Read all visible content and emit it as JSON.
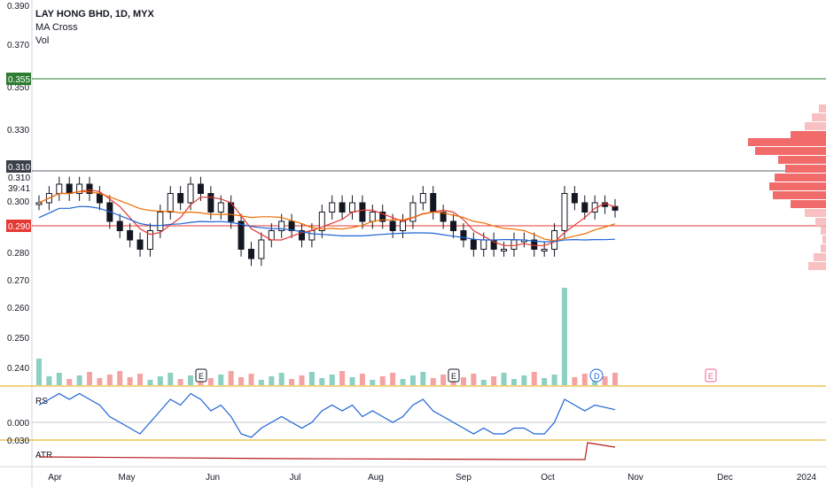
{
  "chart_data": {
    "type": "candlestick",
    "symbol_title": "LAY HONG BHD, 1D, MYX",
    "indicators": [
      "MA Cross",
      "Vol"
    ],
    "price_axis_ticks": [
      "0.390",
      "0.370",
      "0.350",
      "0.330",
      "0.310",
      "0.300",
      "0.290",
      "0.280",
      "0.270",
      "0.260",
      "0.250",
      "0.240"
    ],
    "x_labels": [
      "Apr",
      "May",
      "Jun",
      "Jul",
      "Aug",
      "Sep",
      "Oct",
      "Nov",
      "Dec",
      "2024"
    ],
    "price_labels": {
      "resistance": "0.355",
      "last_price": "0.310",
      "last_price_2": "0.310",
      "countdown": "39:41",
      "support": "0.290"
    },
    "levels": {
      "resistance": 0.355,
      "last_price": 0.31,
      "support": 0.29
    },
    "colors": {
      "resistance": "#2e7d32",
      "support": "#e53935",
      "last_price": "#5d606b",
      "ma_fast": "#e53935",
      "ma_mid": "#ef6c00",
      "ma_slow": "#1e63d6",
      "volume_up": "#8ccfc3",
      "volume_down": "#f4a3a3",
      "profile": "#f26b6b",
      "rs_line": "#1e63d6",
      "atr_line": "#b71c1c"
    },
    "price_series": {
      "start_date": "2023-03-27",
      "end_date": "2023-10-24",
      "closes_approx": [
        0.3,
        0.305,
        0.31,
        0.305,
        0.31,
        0.305,
        0.3,
        0.29,
        0.285,
        0.28,
        0.275,
        0.285,
        0.295,
        0.305,
        0.3,
        0.31,
        0.305,
        0.295,
        0.3,
        0.29,
        0.275,
        0.27,
        0.28,
        0.285,
        0.29,
        0.285,
        0.28,
        0.285,
        0.295,
        0.3,
        0.295,
        0.3,
        0.29,
        0.295,
        0.29,
        0.285,
        0.29,
        0.3,
        0.305,
        0.295,
        0.29,
        0.285,
        0.28,
        0.275,
        0.28,
        0.275,
        0.275,
        0.28,
        0.28,
        0.275,
        0.275,
        0.285,
        0.305,
        0.3,
        0.295,
        0.3,
        0.298,
        0.296
      ]
    },
    "volume_markers": [
      "E",
      "E",
      "D",
      "E"
    ],
    "panels": [
      {
        "name": "RS",
        "ticks": [
          "0.000"
        ]
      },
      {
        "name": "ATR",
        "ticks": [
          "0.030"
        ]
      }
    ]
  }
}
